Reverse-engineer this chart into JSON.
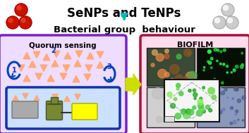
{
  "title1": "SeNPs and TeNPs",
  "title2": "Bacterial group  behaviour",
  "qs_label": "Quorum sensing",
  "biofilm_label": "BIOFILM",
  "down_arrow_color": "#00bbbb",
  "big_arrow_fill": "#ccdd00",
  "big_arrow_outline": "#88aa00",
  "se_np_color": "#cc1100",
  "se_np_highlight": "#ee5533",
  "te_np_color": "#cccccc",
  "te_np_highlight": "#ffffff",
  "qs_box_edge": "#7722cc",
  "qs_box_face": "#eeddff",
  "biofilm_box_edge": "#aa1133",
  "biofilm_box_face": "#ffddee",
  "inner_box_edge": "#1133aa",
  "inner_box_face": "#cce0ff",
  "bacteria_color": "#ffaa77",
  "num_color": "#0033cc",
  "arc_color": "#0044bb",
  "bg_color": "#ffffff",
  "gray_rect_face": "#aaaaaa",
  "gray_rect_edge": "#777777",
  "green_flask_face": "#778833",
  "green_flask_edge": "#445522",
  "yellow_rect_face": "#ffff00",
  "yellow_rect_edge": "#aaaa00",
  "img_tl_face": "#3a4a35",
  "img_tr_face": "#050f05",
  "img_bl_face": "#d0d0d0",
  "img_br_face": "#8899bb",
  "center_box_face": "#f5f5f5",
  "figsize": [
    3.53,
    1.89
  ],
  "dpi": 100
}
